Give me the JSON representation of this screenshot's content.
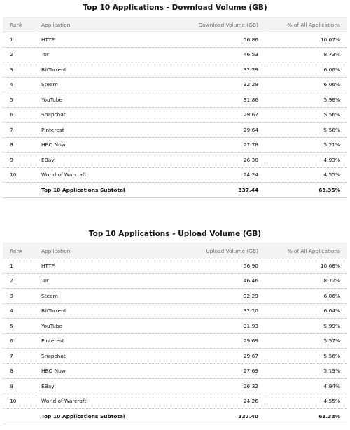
{
  "download": {
    "title": "Top 10 Applications - Download Volume (GB)",
    "headers": [
      "Rank",
      "Application",
      "Download Volume (GB)",
      "% of All Applications"
    ],
    "rows": [
      [
        "1",
        "HTTP",
        "56.86",
        "10.67%"
      ],
      [
        "2",
        "Tor",
        "46.53",
        "8.73%"
      ],
      [
        "3",
        "BitTorrent",
        "32.29",
        "6.06%"
      ],
      [
        "4",
        "Steam",
        "32.29",
        "6.06%"
      ],
      [
        "5",
        "YouTube",
        "31.86",
        "5.98%"
      ],
      [
        "6",
        "Snapchat",
        "29.67",
        "5.56%"
      ],
      [
        "7",
        "Pinterest",
        "29.64",
        "5.56%"
      ],
      [
        "8",
        "HBO Now",
        "27.78",
        "5.21%"
      ],
      [
        "9",
        "EBay",
        "26.30",
        "4.93%"
      ],
      [
        "10",
        "World of Warcraft",
        "24.24",
        "4.55%"
      ]
    ],
    "subtotal": {
      "label": "Top 10 Applications Subtotal",
      "volume": "337.44",
      "percent": "63.35%"
    }
  },
  "upload": {
    "title": "Top 10 Applications - Upload Volume (GB)",
    "headers": [
      "Rank",
      "Application",
      "Upload Volume (GB)",
      "% of All Applications"
    ],
    "rows": [
      [
        "1",
        "HTTP",
        "56.90",
        "10.68%"
      ],
      [
        "2",
        "Tor",
        "46.46",
        "8.72%"
      ],
      [
        "3",
        "Steam",
        "32.29",
        "6.06%"
      ],
      [
        "4",
        "BitTorrent",
        "32.20",
        "6.04%"
      ],
      [
        "5",
        "YouTube",
        "31.93",
        "5.99%"
      ],
      [
        "6",
        "Pinterest",
        "29.69",
        "5.57%"
      ],
      [
        "7",
        "Snapchat",
        "29.67",
        "5.56%"
      ],
      [
        "8",
        "HBO Now",
        "27.69",
        "5.19%"
      ],
      [
        "9",
        "EBay",
        "26.32",
        "4.94%"
      ],
      [
        "10",
        "World of Warcraft",
        "24.26",
        "4.55%"
      ]
    ],
    "subtotal": {
      "label": "Top 10 Applications Subtotal",
      "volume": "337.40",
      "percent": "63.33%"
    }
  }
}
